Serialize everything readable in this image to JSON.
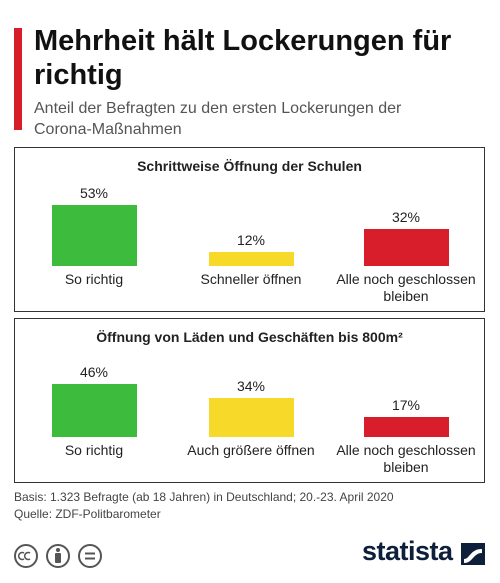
{
  "header": {
    "title": "Mehrheit hält Lockerungen für richtig",
    "subtitle": "Anteil der Befragten zu den ersten Lockerungen der Corona-Maßnahmen"
  },
  "chart_data": [
    {
      "type": "bar",
      "title": "Schrittweise Öffnung der Schulen",
      "categories": [
        "So richtig",
        "Schneller öffnen",
        "Alle noch geschlossen bleiben"
      ],
      "values": [
        53,
        12,
        32
      ],
      "value_labels": [
        "53%",
        "12%",
        "32%"
      ],
      "colors": [
        "#3dbb3d",
        "#f7d92a",
        "#d81e2a"
      ]
    },
    {
      "type": "bar",
      "title": "Öffnung von Läden und Geschäften bis 800m²",
      "categories": [
        "So richtig",
        "Auch größere öffnen",
        "Alle noch geschlossen bleiben"
      ],
      "values": [
        46,
        34,
        17
      ],
      "value_labels": [
        "46%",
        "34%",
        "17%"
      ],
      "colors": [
        "#3dbb3d",
        "#f7d92a",
        "#d81e2a"
      ]
    }
  ],
  "footer": {
    "basis": "Basis: 1.323 Befragte (ab 18 Jahren) in Deutschland; 20.-23. April 2020",
    "source": "Quelle: ZDF-Politbarometer",
    "logo": "statista"
  }
}
